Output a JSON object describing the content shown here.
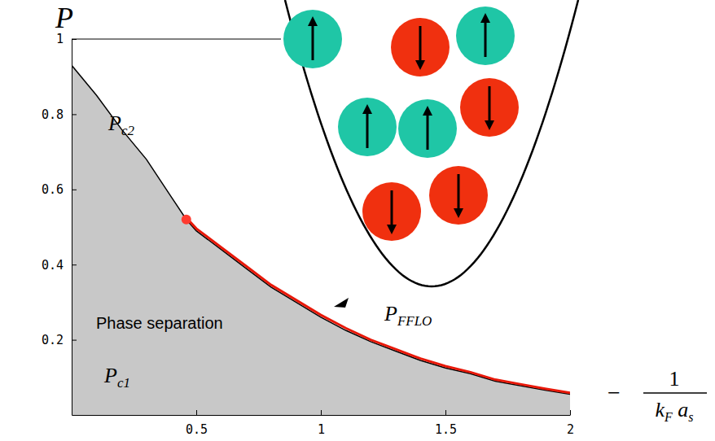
{
  "chart_data": {
    "type": "line",
    "y_label": "P",
    "x_label": {
      "sign": "−",
      "numerator": "1",
      "denominator": [
        {
          "text": "k",
          "subscript": "F"
        },
        {
          "text": "a",
          "subscript": "s"
        }
      ]
    },
    "xlim": [
      0,
      2
    ],
    "ylim": [
      0,
      1
    ],
    "xticks": [
      0.5,
      1,
      1.5,
      2
    ],
    "yticks": [
      0.2,
      0.4,
      0.6,
      0.8,
      1
    ],
    "grid": false,
    "series": [
      {
        "name": "P",
        "subscript": "c2",
        "type": "area",
        "color": "#000000",
        "x": [
          0,
          0.1,
          0.2,
          0.3,
          0.4,
          0.46,
          0.5,
          0.6,
          0.7,
          0.8,
          0.9,
          1.0,
          1.1,
          1.2,
          1.3,
          1.4,
          1.5,
          1.6,
          1.7,
          1.8,
          1.9,
          2.0
        ],
        "values": [
          0.93,
          0.85,
          0.76,
          0.68,
          0.58,
          0.52,
          0.49,
          0.44,
          0.39,
          0.34,
          0.3,
          0.26,
          0.225,
          0.195,
          0.17,
          0.145,
          0.125,
          0.11,
          0.09,
          0.078,
          0.066,
          0.055
        ]
      },
      {
        "name": "P",
        "subscript": "FFLO",
        "type": "line",
        "color": "#e8190a",
        "x": [
          0.46,
          0.5,
          0.6,
          0.7,
          0.8,
          0.9,
          1.0,
          1.1,
          1.2,
          1.3,
          1.4,
          1.5,
          1.6,
          1.7,
          1.8,
          1.9,
          2.0
        ],
        "values": [
          0.525,
          0.496,
          0.446,
          0.396,
          0.346,
          0.306,
          0.266,
          0.231,
          0.2,
          0.175,
          0.15,
          0.13,
          0.114,
          0.094,
          0.082,
          0.07,
          0.059
        ]
      },
      {
        "type": "scatter",
        "color": "#ff3b30",
        "marker": "circle",
        "x": [
          0.46
        ],
        "values": [
          0.52
        ]
      }
    ],
    "annotations": [
      {
        "text": "P",
        "subscript": "c1"
      },
      {
        "text": "Phase separation"
      }
    ]
  }
}
